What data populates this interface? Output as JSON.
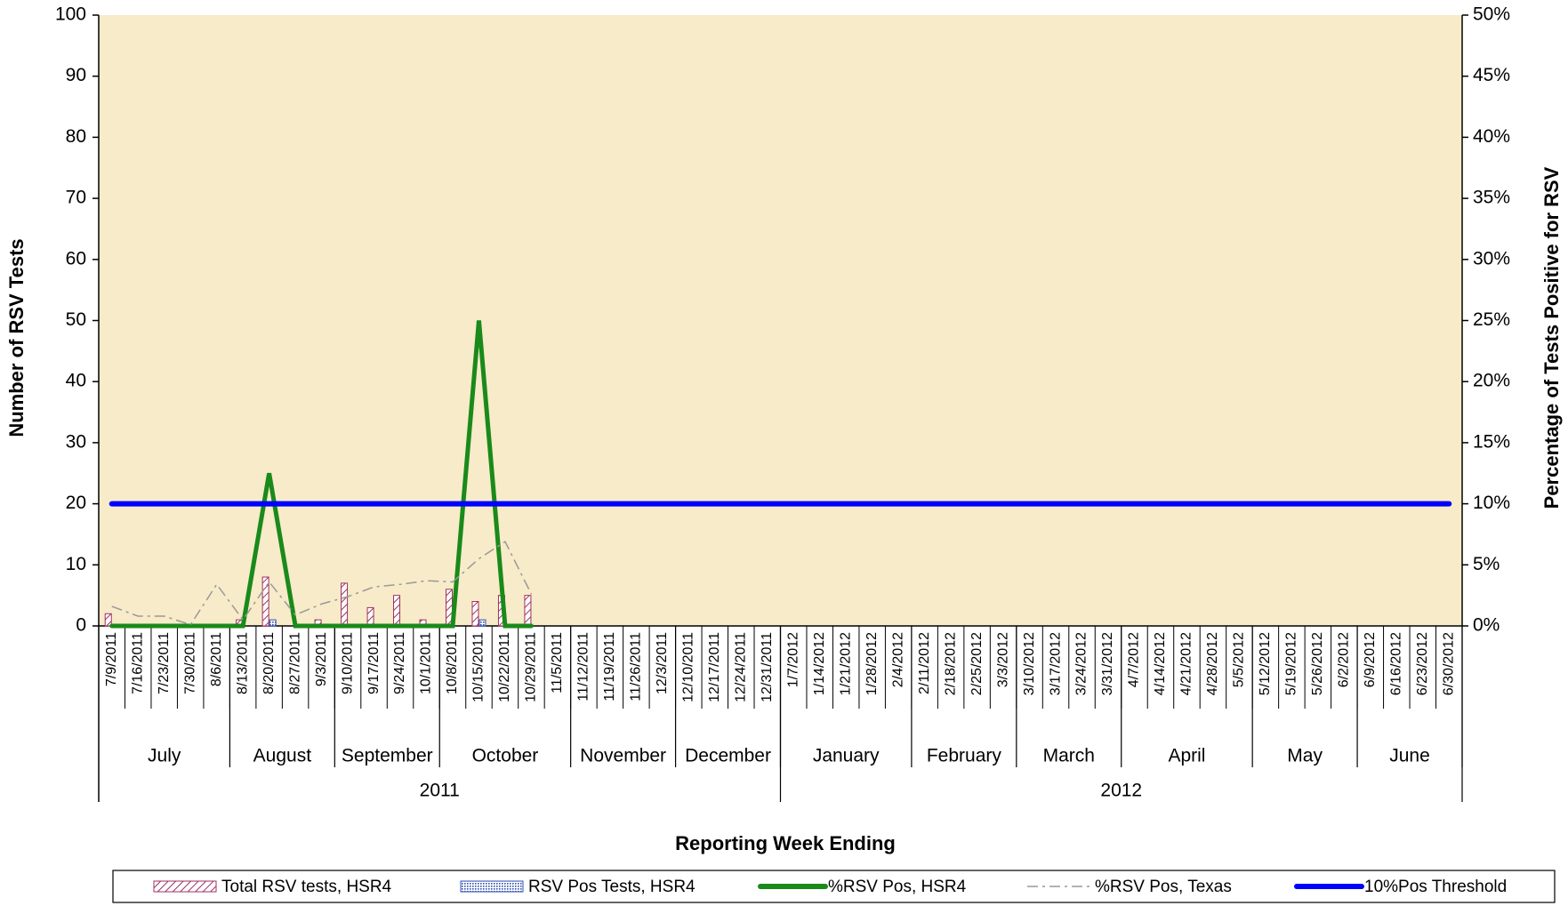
{
  "chart_data": {
    "type": "bar_line",
    "xlabel": "Reporting Week Ending",
    "ylabel": "Number of RSV Tests",
    "y2label": "Percentage  of Tests Positive for RSV",
    "categories": [
      "7/9/2011",
      "7/16/2011",
      "7/23/2011",
      "7/30/2011",
      "8/6/2011",
      "8/13/2011",
      "8/20/2011",
      "8/27/2011",
      "9/3/2011",
      "9/10/2011",
      "9/17/2011",
      "9/24/2011",
      "10/1/2011",
      "10/8/2011",
      "10/15/2011",
      "10/22/2011",
      "10/29/2011",
      "11/5/2011",
      "11/12/2011",
      "11/19/2011",
      "11/26/2011",
      "12/3/2011",
      "12/10/2011",
      "12/17/2011",
      "12/24/2011",
      "12/31/2011",
      "1/7/2012",
      "1/14/2012",
      "1/21/2012",
      "1/28/2012",
      "2/4/2012",
      "2/11/2012",
      "2/18/2012",
      "2/25/2012",
      "3/3/2012",
      "3/10/2012",
      "3/17/2012",
      "3/24/2012",
      "3/31/2012",
      "4/7/2012",
      "4/14/2012",
      "4/21/2012",
      "4/28/2012",
      "5/5/2012",
      "5/12/2012",
      "5/19/2012",
      "5/26/2012",
      "6/2/2012",
      "6/9/2012",
      "6/16/2012",
      "6/23/2012",
      "6/30/2012"
    ],
    "months": [
      "July",
      "August",
      "September",
      "October",
      "November",
      "December",
      "January",
      "February",
      "March",
      "April",
      "May",
      "June"
    ],
    "years": [
      "2011",
      "2012"
    ],
    "series": [
      {
        "name": "Total RSV tests, HSR4",
        "kind": "bar",
        "color": "#a03060",
        "values": [
          2,
          0,
          0,
          0,
          0,
          1,
          8,
          0,
          1,
          7,
          3,
          5,
          1,
          6,
          4,
          5,
          5,
          null,
          null,
          null,
          null,
          null,
          null,
          null,
          null,
          null,
          null,
          null,
          null,
          null,
          null,
          null,
          null,
          null,
          null,
          null,
          null,
          null,
          null,
          null,
          null,
          null,
          null,
          null,
          null,
          null,
          null,
          null,
          null,
          null,
          null,
          null
        ]
      },
      {
        "name": "RSV Pos Tests, HSR4",
        "kind": "bar",
        "color": "#3050b0",
        "values": [
          0,
          0,
          0,
          0,
          0,
          0,
          1,
          0,
          0,
          0,
          0,
          0,
          0,
          0,
          1,
          0,
          0,
          null,
          null,
          null,
          null,
          null,
          null,
          null,
          null,
          null,
          null,
          null,
          null,
          null,
          null,
          null,
          null,
          null,
          null,
          null,
          null,
          null,
          null,
          null,
          null,
          null,
          null,
          null,
          null,
          null,
          null,
          null,
          null,
          null,
          null,
          null
        ]
      },
      {
        "name": "%RSV Pos, HSR4",
        "kind": "line",
        "axis": "y2",
        "color": "#1a8a1a",
        "values": [
          0,
          0,
          0,
          0,
          0,
          0,
          12.5,
          0,
          0,
          0,
          0,
          0,
          0,
          0,
          25,
          0,
          0,
          null,
          null,
          null,
          null,
          null,
          null,
          null,
          null,
          null,
          null,
          null,
          null,
          null,
          null,
          null,
          null,
          null,
          null,
          null,
          null,
          null,
          null,
          null,
          null,
          null,
          null,
          null,
          null,
          null,
          null,
          null,
          null,
          null,
          null,
          null
        ]
      },
      {
        "name": "%RSV Pos, Texas",
        "kind": "dashed",
        "axis": "y2",
        "color": "#999999",
        "values": [
          1.6,
          0.8,
          0.8,
          0.1,
          3.4,
          0.5,
          3.6,
          0.9,
          1.8,
          2.4,
          3.2,
          3.4,
          3.7,
          3.6,
          5.5,
          6.9,
          2.6,
          null,
          null,
          null,
          null,
          null,
          null,
          null,
          null,
          null,
          null,
          null,
          null,
          null,
          null,
          null,
          null,
          null,
          null,
          null,
          null,
          null,
          null,
          null,
          null,
          null,
          null,
          null,
          null,
          null,
          null,
          null,
          null,
          null,
          null,
          null
        ]
      },
      {
        "name": "10%Pos Threshold",
        "kind": "line",
        "axis": "y2",
        "color": "#0000ff",
        "values": [
          10,
          10,
          10,
          10,
          10,
          10,
          10,
          10,
          10,
          10,
          10,
          10,
          10,
          10,
          10,
          10,
          10,
          10,
          10,
          10,
          10,
          10,
          10,
          10,
          10,
          10,
          10,
          10,
          10,
          10,
          10,
          10,
          10,
          10,
          10,
          10,
          10,
          10,
          10,
          10,
          10,
          10,
          10,
          10,
          10,
          10,
          10,
          10,
          10,
          10,
          10,
          10
        ]
      }
    ],
    "ylim": [
      0,
      100
    ],
    "yticks": [
      0,
      10,
      20,
      30,
      40,
      50,
      60,
      70,
      80,
      90,
      100
    ],
    "y2lim": [
      0,
      50
    ],
    "y2ticks": [
      {
        "value": 0,
        "label": "0%"
      },
      {
        "value": 5,
        "label": "5%"
      },
      {
        "value": 10,
        "label": "10%"
      },
      {
        "value": 15,
        "label": "15%"
      },
      {
        "value": 20,
        "label": "20%"
      },
      {
        "value": 25,
        "label": "25%"
      },
      {
        "value": 30,
        "label": "30%"
      },
      {
        "value": 35,
        "label": "35%"
      },
      {
        "value": 40,
        "label": "40%"
      },
      {
        "value": 45,
        "label": "45%"
      },
      {
        "value": 50,
        "label": "50%"
      }
    ],
    "plot_background": "#f7ebc9",
    "legend": "bottom"
  }
}
